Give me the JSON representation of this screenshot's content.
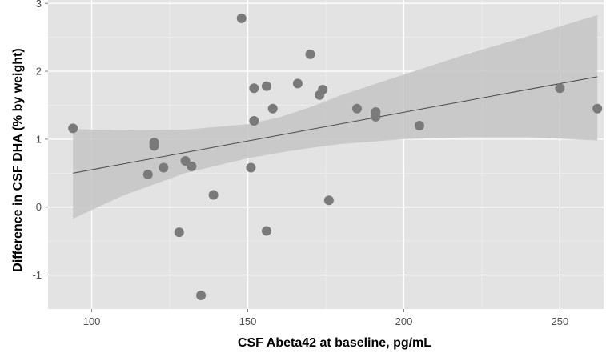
{
  "chart_data": {
    "type": "scatter",
    "xlabel": "CSF Abeta42 at baseline, pg/mL",
    "ylabel": "Difference in CSF DHA (% by weight)",
    "xlim": [
      86,
      264
    ],
    "ylim": [
      -1.5,
      3.05
    ],
    "x_ticks": [
      100,
      150,
      200,
      250
    ],
    "y_ticks": [
      -1,
      0,
      1,
      2,
      3
    ],
    "grid": true,
    "legend": "none",
    "colors": {
      "panel": "#e3e3e3",
      "grid_major": "#ffffff",
      "grid_minor": "#ececec",
      "points": "#7a7a7a",
      "band": "#c4c4c4",
      "line": "#4a4a4a"
    },
    "series": [
      {
        "points": [
          {
            "x": 94,
            "y": 1.16
          },
          {
            "x": 118,
            "y": 0.48
          },
          {
            "x": 120,
            "y": 0.95
          },
          {
            "x": 120,
            "y": 0.9
          },
          {
            "x": 123,
            "y": 0.58
          },
          {
            "x": 128,
            "y": -0.37
          },
          {
            "x": 130,
            "y": 0.68
          },
          {
            "x": 132,
            "y": 0.6
          },
          {
            "x": 135,
            "y": -1.3
          },
          {
            "x": 139,
            "y": 0.18
          },
          {
            "x": 148,
            "y": 2.78
          },
          {
            "x": 151,
            "y": 0.58
          },
          {
            "x": 152,
            "y": 1.75
          },
          {
            "x": 152,
            "y": 1.27
          },
          {
            "x": 156,
            "y": 1.78
          },
          {
            "x": 156,
            "y": -0.35
          },
          {
            "x": 158,
            "y": 1.45
          },
          {
            "x": 166,
            "y": 1.82
          },
          {
            "x": 170,
            "y": 2.25
          },
          {
            "x": 173,
            "y": 1.65
          },
          {
            "x": 174,
            "y": 1.73
          },
          {
            "x": 176,
            "y": 0.1
          },
          {
            "x": 185,
            "y": 1.45
          },
          {
            "x": 191,
            "y": 1.4
          },
          {
            "x": 191,
            "y": 1.33
          },
          {
            "x": 205,
            "y": 1.2
          },
          {
            "x": 250,
            "y": 1.75
          },
          {
            "x": 262,
            "y": 1.45
          }
        ]
      }
    ],
    "trend_line": {
      "x": [
        94,
        262
      ],
      "y": [
        0.5,
        1.92
      ]
    },
    "confidence_band": {
      "x": [
        94,
        110,
        130,
        150,
        160,
        170,
        180,
        200,
        220,
        240,
        262
      ],
      "upper": [
        1.15,
        1.13,
        1.14,
        1.22,
        1.32,
        1.47,
        1.65,
        1.95,
        2.25,
        2.52,
        2.83
      ],
      "lower": [
        -0.17,
        0.17,
        0.5,
        0.72,
        0.8,
        0.87,
        0.93,
        1.0,
        1.03,
        1.03,
        0.98
      ]
    }
  }
}
